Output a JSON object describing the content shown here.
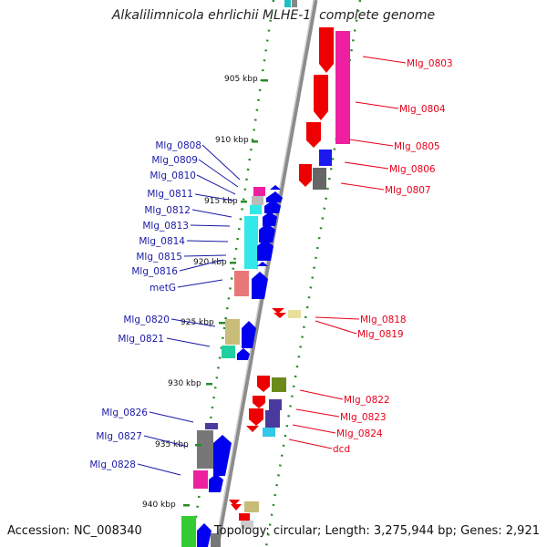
{
  "title": "Alkalilimnicola ehrlichii MLHE-1, complete genome",
  "accession": "Accession: NC_008340",
  "topology": "Topology: circular; Length: 3,275,944 bp; Genes: 2,921",
  "kbp_ticks": [
    "905 kbp",
    "910 kbp",
    "915 kbp",
    "920 kbp",
    "925 kbp",
    "930 kbp",
    "935 kbp",
    "940 kbp"
  ],
  "right_genes": [
    "Mlg_0803",
    "Mlg_0804",
    "Mlg_0805",
    "Mlg_0806",
    "Mlg_0807",
    "Mlg_0818",
    "Mlg_0819",
    "Mlg_0822",
    "Mlg_0823",
    "Mlg_0824",
    "dcd"
  ],
  "left_genes": [
    "Mlg_0808",
    "Mlg_0809",
    "Mlg_0810",
    "Mlg_0811",
    "Mlg_0812",
    "Mlg_0813",
    "Mlg_0814",
    "Mlg_0815",
    "Mlg_0816",
    "metG",
    "Mlg_0820",
    "Mlg_0821",
    "Mlg_0826",
    "Mlg_0827",
    "Mlg_0828"
  ],
  "colors": {
    "label_forward": "#1a1aa6",
    "label_reverse": "#e8001a",
    "backbone": "#8c8c8c",
    "tick_dots": "#2a8a2a",
    "cds_forward": "#0000ee",
    "cds_reverse": "#ee0000"
  }
}
